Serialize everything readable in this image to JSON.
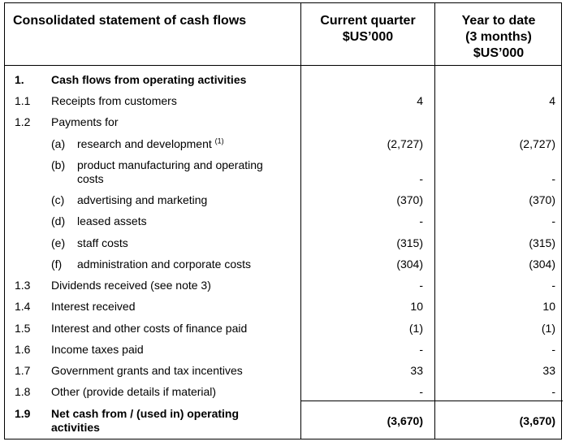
{
  "header": {
    "title": "Consolidated statement of cash flows",
    "col1_line1": "Current quarter",
    "col1_line2": "$US’000",
    "col2_line1": "Year to date",
    "col2_line2": "(3 months)",
    "col2_line3": "$US’000"
  },
  "section": {
    "num": "1.",
    "label": "Cash flows from operating activities"
  },
  "rows": [
    {
      "num": "1.1",
      "label": "Receipts from customers",
      "v1": "4",
      "v2": "4"
    },
    {
      "num": "1.2",
      "label": "Payments for",
      "v1": "",
      "v2": ""
    },
    {
      "letter": "(a)",
      "label": "research and development",
      "note": "(1)",
      "v1": "(2,727)",
      "v2": "(2,727)"
    },
    {
      "letter": "(b)",
      "label_line1": "product manufacturing and operating",
      "label_line2": "costs",
      "v1": "-",
      "v2": "-"
    },
    {
      "letter": "(c)",
      "label": "advertising and marketing",
      "v1": "(370)",
      "v2": "(370)"
    },
    {
      "letter": "(d)",
      "label": "leased assets",
      "v1": "-",
      "v2": "-"
    },
    {
      "letter": "(e)",
      "label": "staff costs",
      "v1": "(315)",
      "v2": "(315)"
    },
    {
      "letter": "(f)",
      "label": "administration and corporate costs",
      "v1": "(304)",
      "v2": "(304)"
    },
    {
      "num": "1.3",
      "label": "Dividends received (see note 3)",
      "v1": "-",
      "v2": "-"
    },
    {
      "num": "1.4",
      "label": "Interest received",
      "v1": "10",
      "v2": "10"
    },
    {
      "num": "1.5",
      "label": "Interest and other costs of finance paid",
      "v1": "(1)",
      "v2": "(1)"
    },
    {
      "num": "1.6",
      "label": "Income taxes paid",
      "v1": "-",
      "v2": "-"
    },
    {
      "num": "1.7",
      "label": "Government grants and tax incentives",
      "v1": "33",
      "v2": "33"
    },
    {
      "num": "1.8",
      "label": "Other (provide details if material)",
      "v1": "-",
      "v2": "-"
    }
  ],
  "total": {
    "num": "1.9",
    "label_line1": "Net cash from / (used in) operating",
    "label_line2": "activities",
    "v1": "(3,670)",
    "v2": "(3,670)"
  }
}
